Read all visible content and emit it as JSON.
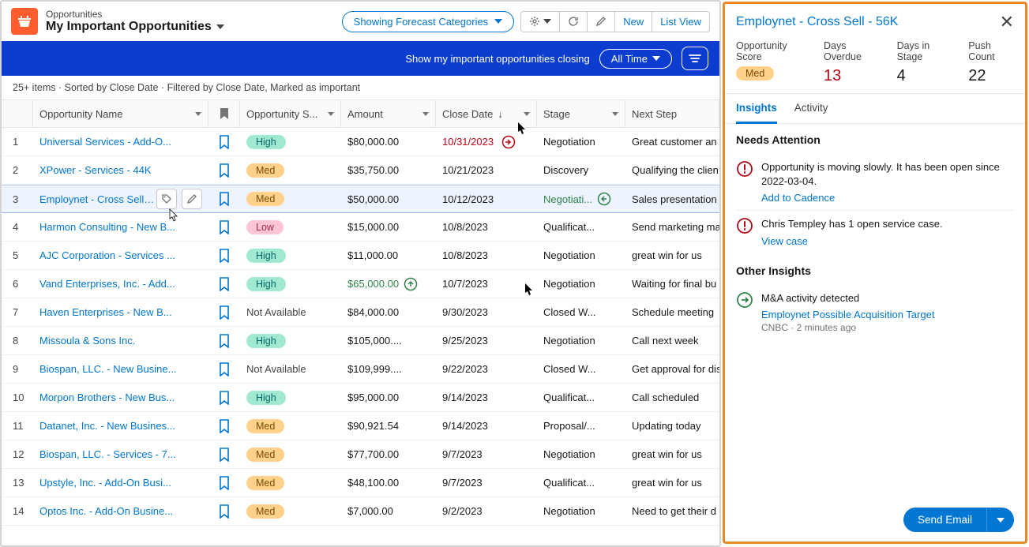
{
  "header": {
    "subtitle": "Opportunities",
    "title": "My Important Opportunities"
  },
  "toolbar": {
    "forecast": "Showing Forecast Categories",
    "new": "New",
    "listview": "List View"
  },
  "bluebar": {
    "text": "Show my important opportunities closing",
    "timefilter": "All Time"
  },
  "status_line": "25+ items · Sorted by Close Date · Filtered by Close Date, Marked as important",
  "columns": {
    "name": "Opportunity Name",
    "score": "Opportunity S...",
    "amount": "Amount",
    "date": "Close Date",
    "stage": "Stage",
    "next": "Next Step"
  },
  "rows": [
    {
      "idx": "1",
      "name": "Universal Services - Add-O...",
      "score": "High",
      "score_class": "high",
      "amount": "$80,000.00",
      "date": "10/31/2023",
      "date_class": "date-red",
      "date_icon": "out",
      "stage": "Negotiation",
      "next": "Great customer an"
    },
    {
      "idx": "2",
      "name": "XPower - Services - 44K",
      "score": "Med",
      "score_class": "med",
      "amount": "$35,750.00",
      "date": "10/21/2023",
      "stage": "Discovery",
      "next": "Qualifying the clien"
    },
    {
      "idx": "3",
      "name": "Employnet - Cross Sell - 56K",
      "score": "Med",
      "score_class": "med",
      "amount": "$50,000.00",
      "date": "10/12/2023",
      "stage": "Negotiati...",
      "stage_class": "stage-green",
      "stage_icon": "in",
      "next": "Sales presentation",
      "selected": true,
      "editicons": true
    },
    {
      "idx": "4",
      "name": "Harmon Consulting - New B...",
      "score": "Low",
      "score_class": "low",
      "amount": "$15,000.00",
      "date": "10/8/2023",
      "stage": "Qualificat...",
      "next": "Send marketing ma"
    },
    {
      "idx": "5",
      "name": "AJC Corporation - Services ...",
      "score": "High",
      "score_class": "high",
      "amount": "$11,000.00",
      "date": "10/8/2023",
      "stage": "Negotiation",
      "next": "great win for us"
    },
    {
      "idx": "6",
      "name": "Vand Enterprises, Inc. - Add...",
      "score": "High",
      "score_class": "high",
      "amount": "$65,000.00",
      "amount_class": "amount-green",
      "amount_icon": "up",
      "date": "10/7/2023",
      "stage": "Negotiation",
      "next": "Waiting for final bu"
    },
    {
      "idx": "7",
      "name": "Haven Enterprises - New B...",
      "score": "Not Available",
      "score_class": "na",
      "amount": "$84,000.00",
      "date": "9/30/2023",
      "stage": "Closed W...",
      "next": "Schedule meeting"
    },
    {
      "idx": "8",
      "name": "Missoula & Sons Inc.",
      "score": "High",
      "score_class": "high",
      "amount": "$105,000....",
      "date": "9/25/2023",
      "stage": "Negotiation",
      "next": "Call next week"
    },
    {
      "idx": "9",
      "name": "Biospan, LLC. - New Busine...",
      "score": "Not Available",
      "score_class": "na",
      "amount": "$109,999....",
      "date": "9/22/2023",
      "stage": "Closed W...",
      "next": "Get approval for dis"
    },
    {
      "idx": "10",
      "name": "Morpon Brothers - New Bus...",
      "score": "High",
      "score_class": "high",
      "amount": "$95,000.00",
      "date": "9/14/2023",
      "stage": "Qualificat...",
      "next": "Call scheduled"
    },
    {
      "idx": "11",
      "name": "Datanet, Inc. - New Busines...",
      "score": "Med",
      "score_class": "med",
      "amount": "$90,921.54",
      "date": "9/14/2023",
      "stage": "Proposal/...",
      "next": "Updating today"
    },
    {
      "idx": "12",
      "name": "Biospan, LLC. - Services - 7...",
      "score": "Med",
      "score_class": "med",
      "amount": "$77,700.00",
      "date": "9/7/2023",
      "stage": "Negotiation",
      "next": "great win for us"
    },
    {
      "idx": "13",
      "name": "Upstyle, Inc. - Add-On Busi...",
      "score": "Med",
      "score_class": "med",
      "amount": "$48,100.00",
      "date": "9/7/2023",
      "stage": "Qualificat...",
      "next": "great win for us"
    },
    {
      "idx": "14",
      "name": "Optos Inc. - Add-On Busine...",
      "score": "Med",
      "score_class": "med",
      "amount": "$7,000.00",
      "date": "9/2/2023",
      "stage": "Negotiation",
      "next": "Need to get their d"
    }
  ],
  "panel": {
    "title": "Employnet - Cross Sell - 56K",
    "metrics": [
      {
        "label": "Opportunity Score",
        "value": "Med",
        "badge": true
      },
      {
        "label": "Days Overdue",
        "value": "13",
        "red": true
      },
      {
        "label": "Days in Stage",
        "value": "4"
      },
      {
        "label": "Push Count",
        "value": "22"
      }
    ],
    "tabs": {
      "insights": "Insights",
      "activity": "Activity"
    },
    "needs_title": "Needs Attention",
    "insights": [
      {
        "icon": "warn",
        "text": "Opportunity is moving slowly. It has been open since 2022-03-04.",
        "link": "Add to Cadence"
      },
      {
        "icon": "warn",
        "text": "Chris Templey has 1 open service case.",
        "link": "View case"
      }
    ],
    "other_title": "Other Insights",
    "other": [
      {
        "icon": "good",
        "text": "M&A activity detected",
        "link": "Employnet Possible Acquisition Target",
        "meta": "CNBC · 2 minutes ago"
      }
    ],
    "send": "Send Email"
  },
  "colors": {
    "brand_blue": "#0176d3",
    "dark_blue": "#0d3dcf",
    "orange": "#e88a2a",
    "app_orange": "#ff5d2d",
    "red": "#ba0517",
    "green": "#2e844a"
  }
}
